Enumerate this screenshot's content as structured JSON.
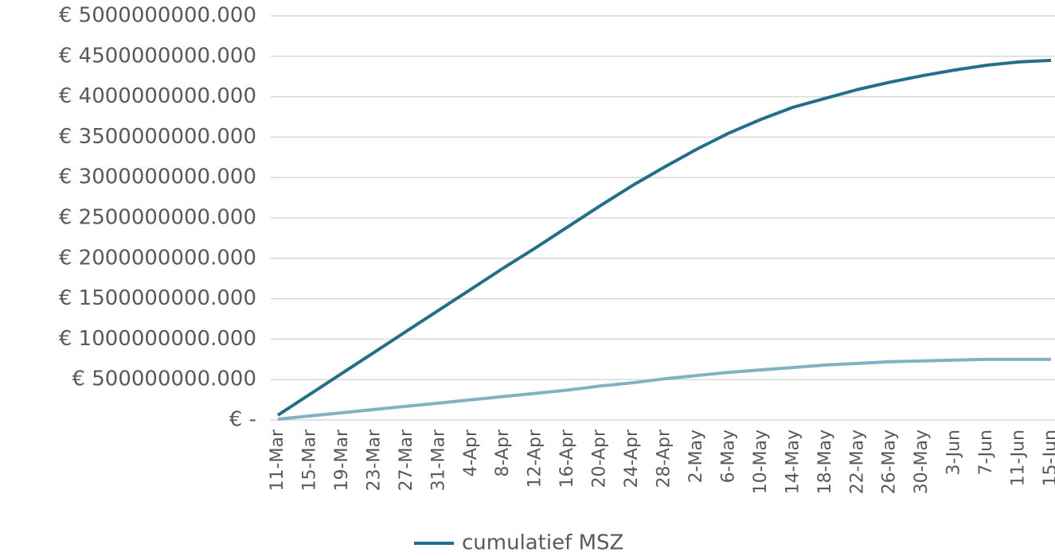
{
  "chart_data": {
    "type": "line",
    "categories": [
      "11-Mar",
      "15-Mar",
      "19-Mar",
      "23-Mar",
      "27-Mar",
      "31-Mar",
      "4-Apr",
      "8-Apr",
      "12-Apr",
      "16-Apr",
      "20-Apr",
      "24-Apr",
      "28-Apr",
      "2-May",
      "6-May",
      "10-May",
      "14-May",
      "18-May",
      "22-May",
      "26-May",
      "30-May",
      "3-Jun",
      "7-Jun",
      "11-Jun",
      "15-Jun"
    ],
    "series": [
      {
        "name": "cumulatief MSZ",
        "color": "#236e8a",
        "values": [
          60000000,
          320000000,
          580000000,
          840000000,
          1100000000,
          1360000000,
          1620000000,
          1880000000,
          2130000000,
          2390000000,
          2650000000,
          2900000000,
          3130000000,
          3350000000,
          3550000000,
          3720000000,
          3870000000,
          3980000000,
          4090000000,
          4180000000,
          4260000000,
          4330000000,
          4390000000,
          4430000000,
          4450000000
        ]
      },
      {
        "color": "#7fb3c4",
        "values": [
          10000000,
          50000000,
          90000000,
          130000000,
          170000000,
          210000000,
          250000000,
          290000000,
          330000000,
          370000000,
          420000000,
          460000000,
          510000000,
          550000000,
          590000000,
          620000000,
          650000000,
          680000000,
          700000000,
          720000000,
          730000000,
          740000000,
          750000000,
          750000000,
          750000000
        ]
      }
    ],
    "ylim": [
      0,
      5000000000
    ],
    "yticks": [
      {
        "value": 0,
        "label": "€ -"
      },
      {
        "value": 500000000,
        "label": "€ 500000000.000"
      },
      {
        "value": 1000000000,
        "label": "€ 1000000000.000"
      },
      {
        "value": 1500000000,
        "label": "€ 1500000000.000"
      },
      {
        "value": 2000000000,
        "label": "€ 2000000000.000"
      },
      {
        "value": 2500000000,
        "label": "€ 2500000000.000"
      },
      {
        "value": 3000000000,
        "label": "€ 3000000000.000"
      },
      {
        "value": 3500000000,
        "label": "€ 3500000000.000"
      },
      {
        "value": 4000000000,
        "label": "€ 4000000000.000"
      },
      {
        "value": 4500000000,
        "label": "€ 4500000000.000"
      },
      {
        "value": 5000000000,
        "label": "€ 5000000000.000"
      }
    ],
    "grid": true
  }
}
